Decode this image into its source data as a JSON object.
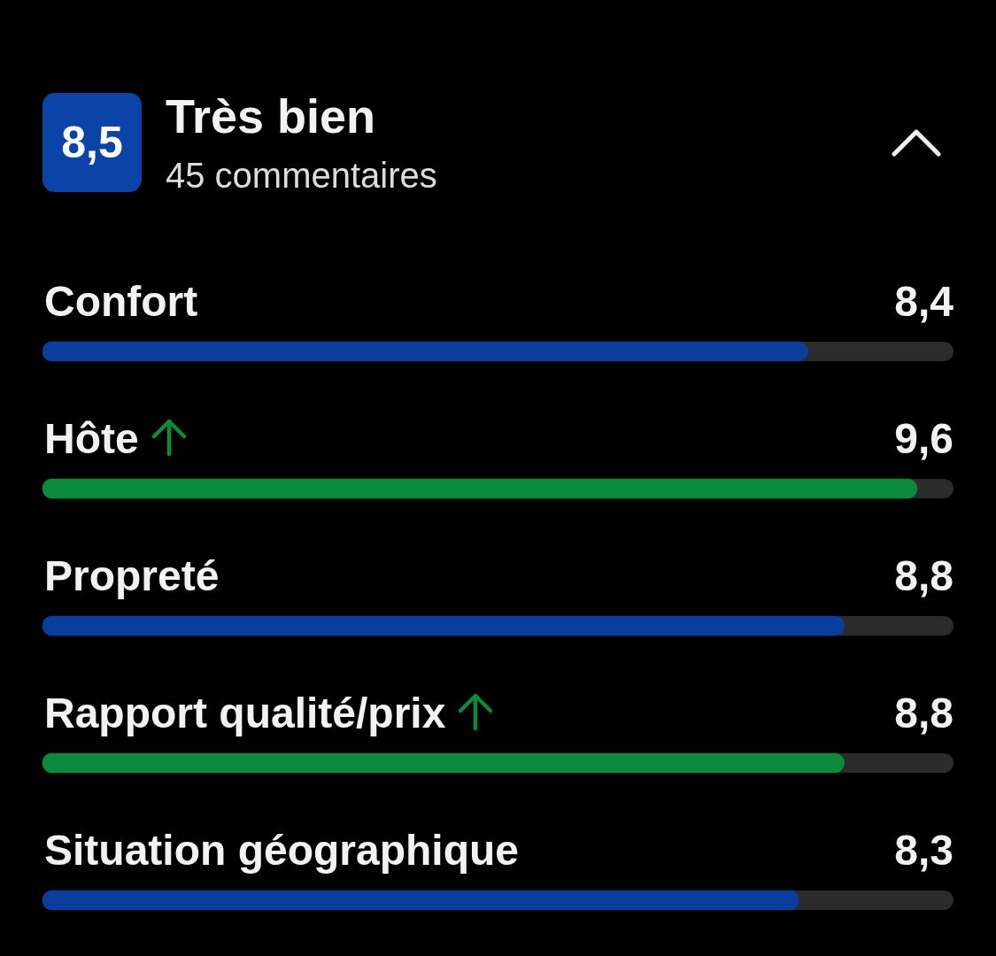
{
  "chart_data": {
    "type": "bar",
    "orientation": "horizontal",
    "title": "Très bien",
    "subtitle": "45 commentaires",
    "annotations": [
      "8,5"
    ],
    "categories": [
      "Confort",
      "Hôte",
      "Propreté",
      "Rapport qualité/prix",
      "Situation géographique"
    ],
    "values": [
      8.4,
      9.6,
      8.8,
      8.8,
      8.3
    ],
    "value_labels": [
      "8,4",
      "9,6",
      "8,8",
      "8,8",
      "8,3"
    ],
    "colors": [
      "#0b3d9c",
      "#0a8a3c",
      "#0b3d9c",
      "#0a8a3c",
      "#0b3d9c"
    ],
    "xlim": [
      0,
      10
    ]
  }
}
